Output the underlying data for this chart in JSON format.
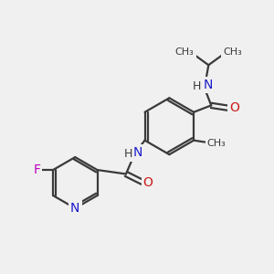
{
  "background_color": "#f0f0f0",
  "bond_color": "#3a3a3a",
  "bond_width": 1.6,
  "atom_colors": {
    "N": "#1a1acc",
    "O": "#cc1a1a",
    "F": "#bb00bb",
    "C": "#3a3a3a"
  },
  "font_size": 9,
  "fig_size": [
    3.0,
    3.0
  ],
  "dpi": 100,
  "xlim": [
    0,
    10
  ],
  "ylim": [
    0,
    10
  ]
}
